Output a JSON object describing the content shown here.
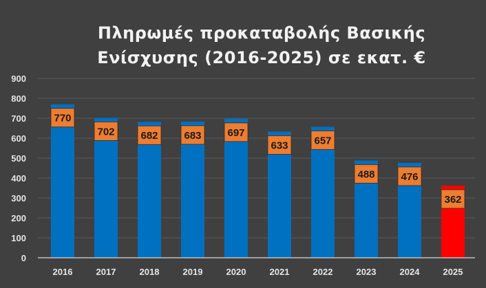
{
  "chart_data": {
    "type": "bar",
    "title": "Πληρωμές προκαταβολής Βασικής Ενίσχυσης (2016-2025) σε εκατ. €",
    "title_lines": [
      "Πληρωμές προκαταβολής Βασικής",
      "Ενίσχυσης (2016-2025) σε εκατ. €"
    ],
    "categories": [
      "2016",
      "2017",
      "2018",
      "2019",
      "2020",
      "2021",
      "2022",
      "2023",
      "2024",
      "2025"
    ],
    "values": [
      770,
      702,
      682,
      683,
      697,
      633,
      657,
      488,
      476,
      362
    ],
    "xlabel": "",
    "ylabel": "",
    "ylim": [
      0,
      900
    ],
    "yticks": [
      0,
      100,
      200,
      300,
      400,
      500,
      600,
      700,
      800,
      900
    ],
    "grid": true,
    "legend": "none",
    "colors": {
      "bar": "#0070C0",
      "highlight": "#FF0000",
      "label_box": "#ED7D31",
      "background": "#404040"
    },
    "highlight_category": "2025"
  }
}
